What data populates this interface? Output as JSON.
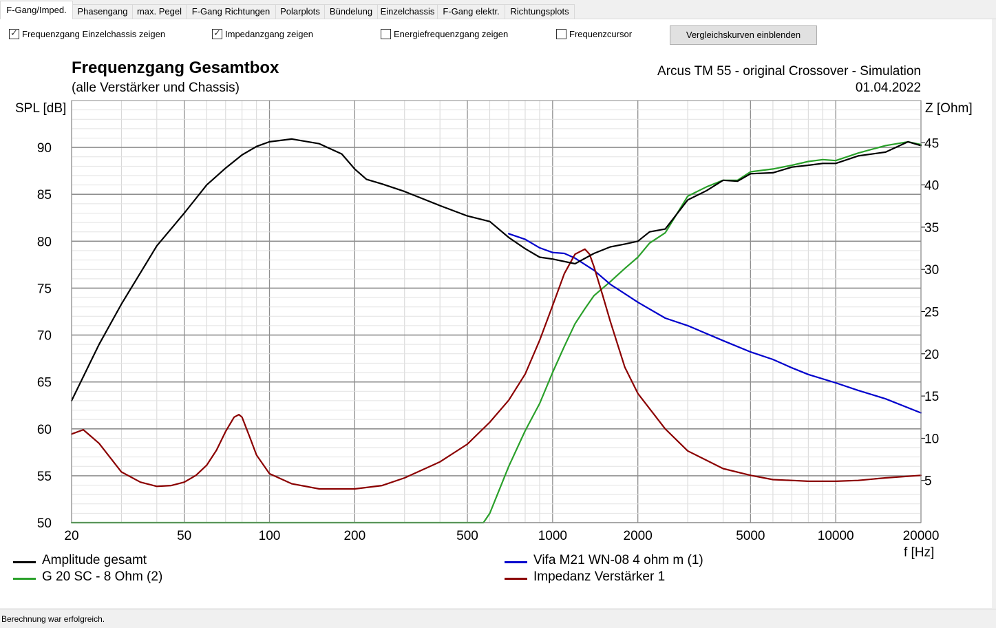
{
  "tabs": [
    {
      "label": "F-Gang/Imped.",
      "active": true
    },
    {
      "label": "Phasengang",
      "active": false
    },
    {
      "label": "max. Pegel",
      "active": false
    },
    {
      "label": "F-Gang Richtungen",
      "active": false
    },
    {
      "label": "Polarplots",
      "active": false
    },
    {
      "label": "Bündelung",
      "active": false
    },
    {
      "label": "Einzelchassis",
      "active": false
    },
    {
      "label": "F-Gang elektr.",
      "active": false
    },
    {
      "label": "Richtungsplots",
      "active": false
    }
  ],
  "options": [
    {
      "label": "Frequenzgang Einzelchassis zeigen",
      "checked": true
    },
    {
      "label": "Impedanzgang zeigen",
      "checked": true
    },
    {
      "label": "Energiefrequenzgang zeigen",
      "checked": false
    },
    {
      "label": "Frequenzcursor",
      "checked": false
    }
  ],
  "compare_button": "Vergleichskurven einblenden",
  "status": "Berechnung war erfolgreich.",
  "chart_data": {
    "type": "line",
    "title": "Frequenzgang Gesamtbox",
    "subtitle": "(alle Verstärker und Chassis)",
    "info_line1": "Arcus TM 55 - original Crossover - Simulation",
    "info_line2": "01.04.2022",
    "ylabel_left": "SPL [dB]",
    "ylabel_right": "Z [Ohm]",
    "xlabel": "f [Hz]",
    "xscale": "log",
    "xlim": [
      20,
      20000
    ],
    "ylim_left": [
      50,
      95
    ],
    "ylim_right": [
      0,
      50
    ],
    "x_ticks": [
      "20",
      "50",
      "100",
      "200",
      "500",
      "1000",
      "2000",
      "5000",
      "10000",
      "20000"
    ],
    "y_ticks_left": [
      "50",
      "55",
      "60",
      "65",
      "70",
      "75",
      "80",
      "85",
      "90"
    ],
    "y_ticks_right": [
      "5",
      "10",
      "15",
      "20",
      "25",
      "30",
      "35",
      "40",
      "45"
    ],
    "grid": true,
    "legend_position": "bottom",
    "series": [
      {
        "name": "Amplitude gesamt",
        "color": "#000000",
        "axis": "left",
        "x": [
          20,
          25,
          30,
          40,
          50,
          60,
          70,
          80,
          90,
          100,
          120,
          150,
          180,
          200,
          220,
          250,
          300,
          400,
          500,
          600,
          700,
          800,
          900,
          1000,
          1200,
          1400,
          1600,
          1800,
          2000,
          2200,
          2500,
          3000,
          3500,
          4000,
          4500,
          5000,
          6000,
          7000,
          8000,
          9000,
          10000,
          12000,
          15000,
          18000,
          20000
        ],
        "y": [
          63,
          69,
          73.3,
          79.5,
          83,
          86,
          87.8,
          89.2,
          90.1,
          90.6,
          90.9,
          90.4,
          89.3,
          87.7,
          86.6,
          86.1,
          85.3,
          83.8,
          82.7,
          82.1,
          80.4,
          79.2,
          78.3,
          78.1,
          77.6,
          78.7,
          79.4,
          79.7,
          80,
          81,
          81.3,
          84.4,
          85.4,
          86.5,
          86.4,
          87.2,
          87.3,
          87.9,
          88.1,
          88.3,
          88.3,
          89.1,
          89.5,
          90.6,
          90.2
        ]
      },
      {
        "name": "Vifa M21 WN-08 4 ohm m (1)",
        "color": "#0000cc",
        "axis": "left",
        "x": [
          700,
          800,
          900,
          1000,
          1100,
          1200,
          1400,
          1600,
          1800,
          2000,
          2500,
          3000,
          4000,
          5000,
          6000,
          7000,
          8000,
          10000,
          12000,
          15000,
          20000
        ],
        "y": [
          80.8,
          80.2,
          79.3,
          78.8,
          78.7,
          78.2,
          76.9,
          75.4,
          74.4,
          73.5,
          71.8,
          71,
          69.4,
          68.2,
          67.4,
          66.5,
          65.8,
          64.9,
          64.1,
          63.2,
          61.7
        ]
      },
      {
        "name": "G 20 SC - 8 Ohm (2)",
        "color": "#2aa02a",
        "axis": "left",
        "x": [
          20,
          570,
          600,
          700,
          800,
          900,
          1000,
          1100,
          1200,
          1300,
          1400,
          1600,
          1800,
          2000,
          2200,
          2500,
          3000,
          3500,
          4000,
          4500,
          5000,
          6000,
          7000,
          8000,
          9000,
          10000,
          12000,
          15000,
          18000,
          20000
        ],
        "y": [
          50,
          50,
          51,
          56,
          59.8,
          62.7,
          66,
          68.8,
          71.2,
          72.8,
          74.2,
          75.7,
          77.1,
          78.3,
          79.8,
          80.9,
          84.8,
          85.8,
          86.5,
          86.5,
          87.4,
          87.7,
          88.1,
          88.5,
          88.7,
          88.6,
          89.4,
          90.2,
          90.6,
          90.3
        ]
      },
      {
        "name": "Impedanz Verstärker 1",
        "color": "#8b0000",
        "axis": "right",
        "x": [
          20,
          22,
          25,
          30,
          35,
          40,
          45,
          50,
          55,
          60,
          65,
          70,
          75,
          78,
          80,
          85,
          90,
          100,
          120,
          150,
          200,
          250,
          300,
          400,
          500,
          600,
          700,
          800,
          900,
          1000,
          1100,
          1200,
          1300,
          1350,
          1400,
          1500,
          1600,
          1800,
          2000,
          2500,
          3000,
          4000,
          5000,
          6000,
          7000,
          8000,
          10000,
          12000,
          15000,
          20000
        ],
        "y": [
          10.5,
          11,
          9.4,
          6,
          4.8,
          4.3,
          4.4,
          4.8,
          5.6,
          6.8,
          8.6,
          10.8,
          12.5,
          12.8,
          12.5,
          10.2,
          8,
          5.8,
          4.6,
          4,
          4,
          4.4,
          5.3,
          7.2,
          9.3,
          11.9,
          14.5,
          17.6,
          21.6,
          25.7,
          29.5,
          31.8,
          32.4,
          31.8,
          30.3,
          27,
          23.8,
          18.4,
          15.3,
          11.1,
          8.5,
          6.4,
          5.6,
          5.1,
          5,
          4.9,
          4.9,
          5,
          5.3,
          5.6
        ]
      }
    ]
  }
}
